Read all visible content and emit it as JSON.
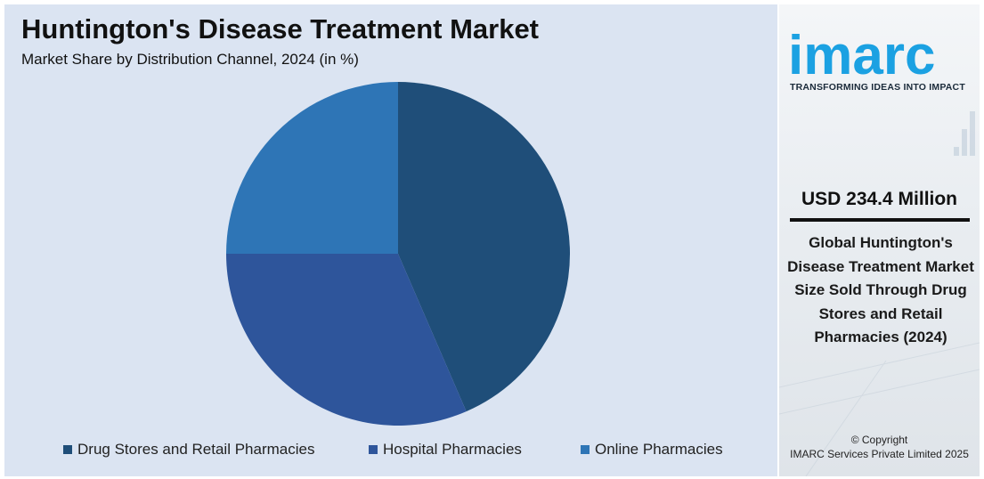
{
  "chart_data": {
    "type": "pie",
    "title": "Huntington's Disease Treatment Market",
    "subtitle": "Market Share by Distribution Channel, 2024 (in %)",
    "categories": [
      "Drug Stores and Retail Pharmacies",
      "Hospital Pharmacies",
      "Online Pharmacies"
    ],
    "values": [
      43.5,
      31.5,
      25.0
    ],
    "colors": [
      "#1f4e79",
      "#2e559b",
      "#2e75b6"
    ],
    "legend_position": "bottom"
  },
  "sidebar": {
    "logo_text": "imarc",
    "tagline": "TRANSFORMING IDEAS INTO IMPACT",
    "market_value": "USD 234.4 Million",
    "description": "Global Huntington's Disease Treatment Market Size Sold Through Drug Stores and Retail Pharmacies (2024)",
    "copyright_line1": "© Copyright",
    "copyright_line2": "IMARC Services Private Limited 2025",
    "brand_color": "#1ba1e2"
  }
}
